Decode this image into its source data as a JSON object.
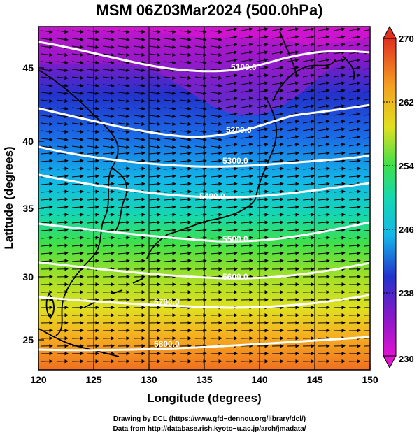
{
  "title": "MSM 06Z03Mar2024 (500.0hPa)",
  "xlabel": "Longitude (degrees)",
  "ylabel": "Latitude  (degrees)",
  "x_ticks": [
    "120",
    "125",
    "130",
    "135",
    "140",
    "145",
    "150"
  ],
  "y_ticks": [
    "25",
    "30",
    "35",
    "40",
    "45"
  ],
  "colorbar": {
    "ticks": [
      "230",
      "238",
      "246",
      "254",
      "262",
      "270"
    ],
    "min": 230,
    "max": 270,
    "colors": [
      "#e013d2",
      "#8a18c8",
      "#2233cc",
      "#1a6be6",
      "#13b8e8",
      "#15d8b0",
      "#3ee04a",
      "#9ae02a",
      "#e0e020",
      "#f5b020",
      "#f07020",
      "#e03020"
    ]
  },
  "contour_labels": [
    "5100.0",
    "5200.0",
    "5300.0",
    "5400.0",
    "5500.0",
    "5600.0",
    "5700.0",
    "5800.0"
  ],
  "footer": {
    "line1": "Drawing by DCL (https://www.gfd−dennou.org/library/dcl/)",
    "line2": "Data from http://database.rish.kyoto−u.ac.jp/arch/jmadata/"
  }
}
